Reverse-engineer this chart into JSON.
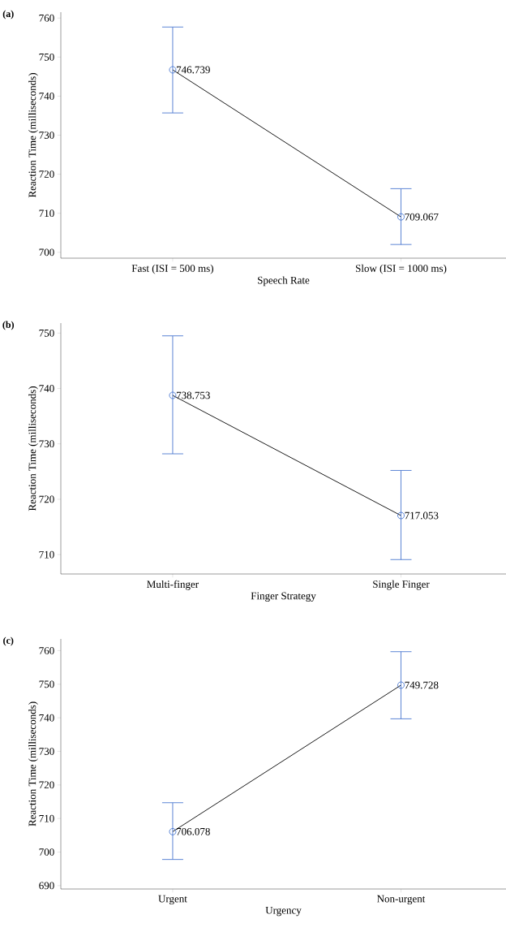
{
  "chart_data": [
    {
      "type": "line",
      "title": "(a)",
      "xlabel": "Speech Rate",
      "ylabel": "Reaction Time (milliseconds)",
      "categories": [
        "Fast (ISI = 500 ms)",
        "Slow (ISI = 1000 ms)"
      ],
      "series": [
        {
          "color": "#4a78d0",
          "values": [
            746.739,
            709.067
          ],
          "errors": [
            [
              735.7,
              757.7
            ],
            [
              702,
              716.3
            ]
          ]
        }
      ],
      "ylim": [
        698.5,
        761.5
      ],
      "yticks": [
        700,
        710,
        720,
        730,
        740,
        750,
        760
      ],
      "marker": "circle",
      "data_labels": true
    },
    {
      "type": "line",
      "title": "(b)",
      "xlabel": "Finger Strategy",
      "ylabel": "Reaction Time (milliseconds)",
      "categories": [
        "Multi-finger",
        "Single Finger"
      ],
      "series": [
        {
          "color": "#4a78d0",
          "values": [
            738.753,
            717.053
          ],
          "errors": [
            [
              728.2,
              749.5
            ],
            [
              709.1,
              725.2
            ]
          ]
        }
      ],
      "ylim": [
        706.5,
        751.8
      ],
      "yticks": [
        710,
        720,
        730,
        740,
        750
      ],
      "marker": "circle",
      "data_labels": true
    },
    {
      "type": "line",
      "title": "(c)",
      "xlabel": "Urgency",
      "ylabel": "Reaction Time (milliseconds)",
      "categories": [
        "Urgent",
        "Non-urgent"
      ],
      "series": [
        {
          "color": "#4a78d0",
          "values": [
            706.078,
            749.728
          ],
          "errors": [
            [
              697.8,
              714.7
            ],
            [
              739.7,
              759.7
            ]
          ]
        }
      ],
      "ylim": [
        689,
        763.5
      ],
      "yticks": [
        690,
        700,
        710,
        720,
        730,
        740,
        750,
        760
      ],
      "marker": "circle",
      "data_labels": true
    }
  ]
}
